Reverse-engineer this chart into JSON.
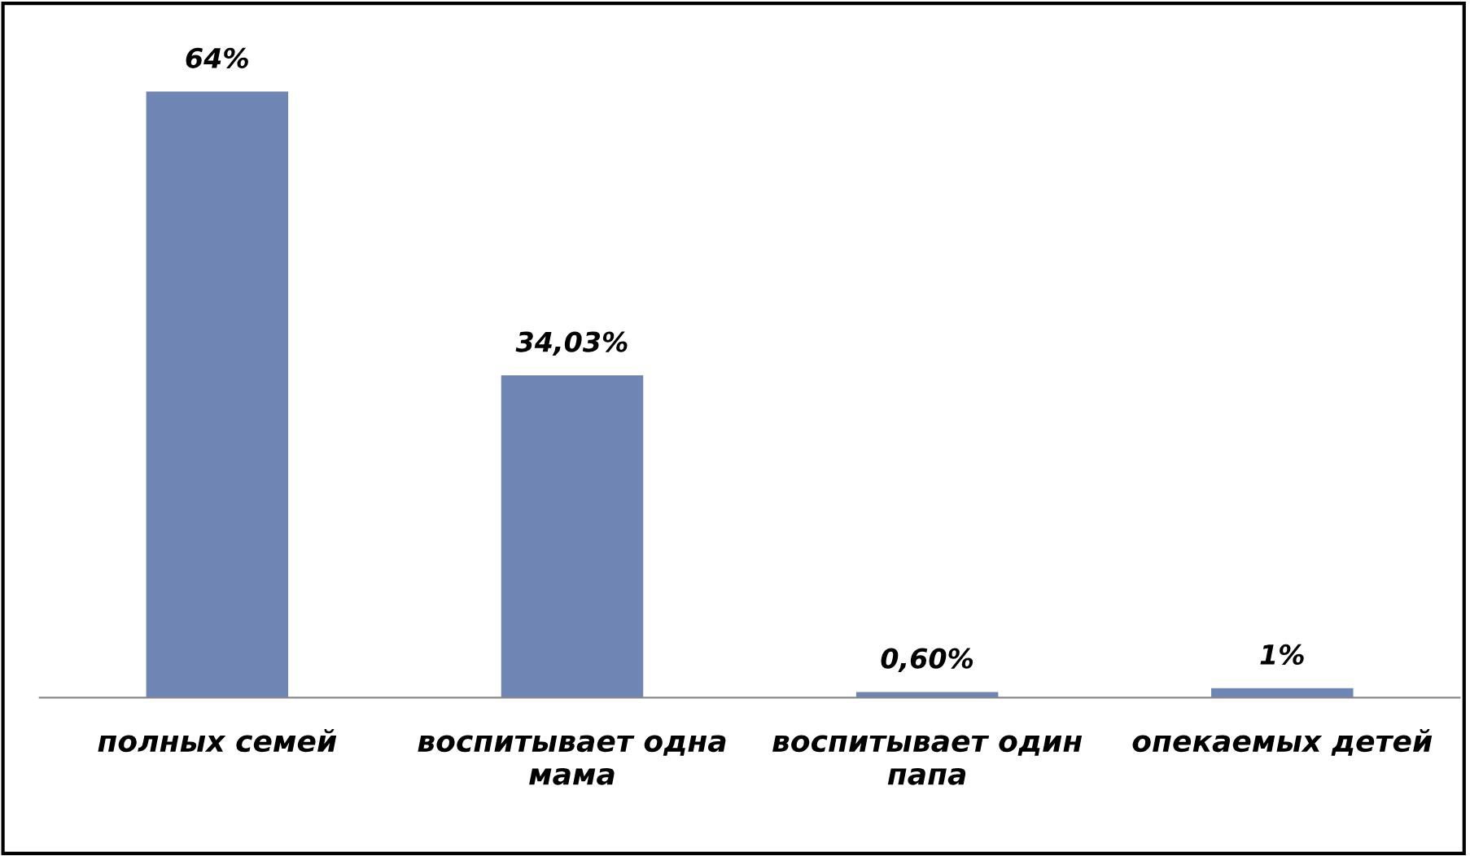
{
  "chart_data": {
    "type": "bar",
    "categories": [
      "полных семей",
      "воспитывает одна мама",
      "воспитывает один папа",
      "опекаемых детей"
    ],
    "values": [
      64,
      34.03,
      0.6,
      1
    ],
    "value_labels": [
      "64%",
      "34,03%",
      "0,60%",
      "1%"
    ],
    "color": "#6f86b4",
    "grid": false,
    "legend": false
  }
}
